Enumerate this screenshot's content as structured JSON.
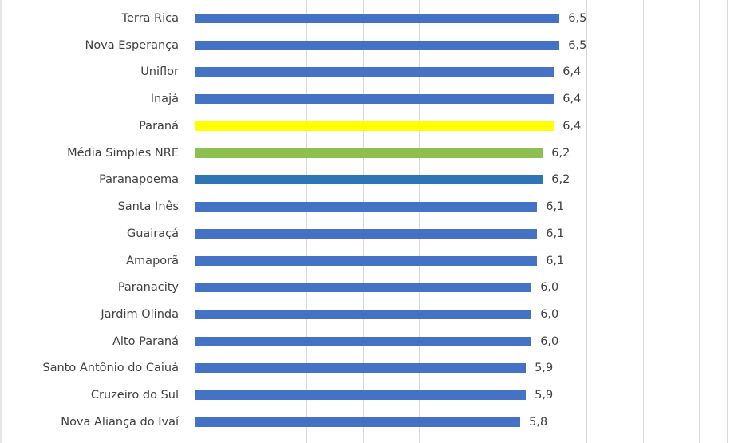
{
  "chart_data": {
    "type": "bar",
    "orientation": "horizontal",
    "title": "",
    "xlabel": "",
    "ylabel": "",
    "xlim": [
      0,
      9
    ],
    "grid": true,
    "gridline_step": 1,
    "legend": null,
    "decimal_separator": ",",
    "categories": [
      "Terra Rica",
      "Nova Esperança",
      "Uniflor",
      "Inajá",
      "Paraná",
      "Média Simples NRE",
      "Paranapoema",
      "Santa Inês",
      "Guairaçá",
      "Amaporã",
      "Paranacity",
      "Jardim Olinda",
      "Alto Paraná",
      "Santo Antônio do Caiuá",
      "Cruzeiro do Sul",
      "Nova Aliança do Ivaí"
    ],
    "values": [
      6.5,
      6.5,
      6.4,
      6.4,
      6.4,
      6.2,
      6.2,
      6.1,
      6.1,
      6.1,
      6.0,
      6.0,
      6.0,
      5.9,
      5.9,
      5.8
    ],
    "value_labels": [
      "6,5",
      "6,5",
      "6,4",
      "6,4",
      "6,4",
      "6,2",
      "6,2",
      "6,1",
      "6,1",
      "6,1",
      "6,0",
      "6,0",
      "6,0",
      "5,9",
      "5,9",
      "5,8"
    ],
    "bar_colors": [
      "#4472C4",
      "#4472C4",
      "#4472C4",
      "#4472C4",
      "#FFFF00",
      "#8CC152",
      "#2E75B6",
      "#4472C4",
      "#4472C4",
      "#4472C4",
      "#4472C4",
      "#4472C4",
      "#4472C4",
      "#4472C4",
      "#4472C4",
      "#4472C4"
    ],
    "highlights": {
      "Paraná": "#FFFF00",
      "Média Simples NRE": "#8CC152",
      "Paranapoema": "#2E75B6"
    },
    "cropped_note": "Chart is cropped: additional rows exist above Terra Rica and below Nova Aliança do Ivaí (partially visible)."
  },
  "colors": {
    "default_bar": "#4472C4",
    "state_bar": "#FFFF00",
    "average_bar": "#8CC152",
    "highlight_bar": "#2E75B6",
    "gridline": "#D9D9D9",
    "text": "#404040"
  }
}
